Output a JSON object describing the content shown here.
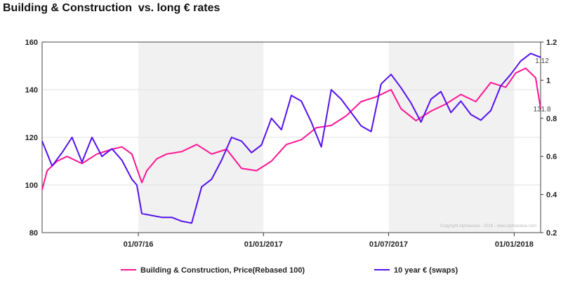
{
  "chart_data": {
    "type": "line",
    "title": "Building & Construction  vs. long € rates",
    "x_ticks": [
      "01/07/16",
      "01/01/2017",
      "01/07/2017",
      "01/01/2018"
    ],
    "ylim_left": [
      80,
      160
    ],
    "left_ticks": [
      "80",
      "100",
      "120",
      "140",
      "160"
    ],
    "ylim_right": [
      0.2,
      1.2
    ],
    "right_ticks": [
      "0.2",
      "0.4",
      "0.6",
      "0.8",
      "1",
      "1.2"
    ],
    "shaded_periods": [
      [
        "01/07/16",
        "01/01/2017"
      ],
      [
        "01/07/2017",
        "01/01/2018"
      ]
    ],
    "series": [
      {
        "name": "Building & Construction, Price(Rebased 100)",
        "axis": "left",
        "color": "#ff1493",
        "x": [
          0,
          0.01,
          0.03,
          0.05,
          0.08,
          0.11,
          0.14,
          0.16,
          0.18,
          0.2,
          0.21,
          0.23,
          0.25,
          0.28,
          0.31,
          0.34,
          0.37,
          0.4,
          0.43,
          0.46,
          0.49,
          0.52,
          0.55,
          0.58,
          0.61,
          0.64,
          0.67,
          0.7,
          0.72,
          0.75,
          0.78,
          0.81,
          0.84,
          0.87,
          0.9,
          0.93,
          0.95,
          0.97,
          0.99,
          1.0
        ],
        "values": [
          98,
          106,
          110,
          112,
          109,
          113,
          115,
          116,
          113,
          101,
          106,
          111,
          113,
          114,
          117,
          113,
          115,
          107,
          106,
          110,
          117,
          119,
          124,
          125,
          129,
          135,
          137,
          140,
          132,
          127,
          131,
          134,
          138,
          135,
          143,
          141,
          147,
          149,
          145,
          132
        ],
        "end_label": "131.8"
      },
      {
        "name": "10 year € (swaps)",
        "axis": "right",
        "color": "#5511ee",
        "x": [
          0,
          0.02,
          0.04,
          0.06,
          0.08,
          0.1,
          0.12,
          0.14,
          0.16,
          0.18,
          0.19,
          0.2,
          0.22,
          0.24,
          0.26,
          0.28,
          0.3,
          0.32,
          0.34,
          0.36,
          0.38,
          0.4,
          0.42,
          0.44,
          0.46,
          0.48,
          0.5,
          0.52,
          0.54,
          0.56,
          0.58,
          0.6,
          0.62,
          0.64,
          0.66,
          0.68,
          0.7,
          0.72,
          0.74,
          0.76,
          0.78,
          0.8,
          0.82,
          0.84,
          0.86,
          0.88,
          0.9,
          0.92,
          0.94,
          0.96,
          0.98,
          1.0
        ],
        "values": [
          0.68,
          0.55,
          0.62,
          0.7,
          0.57,
          0.7,
          0.6,
          0.64,
          0.58,
          0.48,
          0.45,
          0.3,
          0.29,
          0.28,
          0.28,
          0.26,
          0.25,
          0.44,
          0.48,
          0.58,
          0.7,
          0.68,
          0.62,
          0.66,
          0.8,
          0.74,
          0.92,
          0.89,
          0.78,
          0.65,
          0.95,
          0.9,
          0.83,
          0.76,
          0.73,
          0.98,
          1.03,
          0.96,
          0.88,
          0.78,
          0.9,
          0.94,
          0.83,
          0.89,
          0.82,
          0.79,
          0.84,
          0.97,
          1.03,
          1.1,
          1.14,
          1.12
        ],
        "end_label": "1.12"
      }
    ],
    "watermark": "Copyright Alphavalue - 2018 - www.alphavalue.com"
  }
}
